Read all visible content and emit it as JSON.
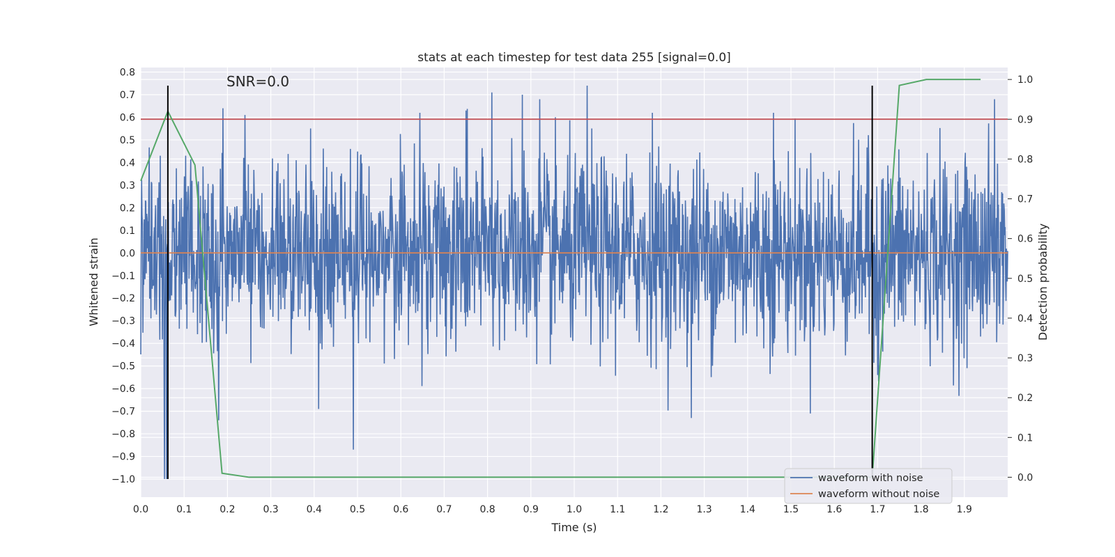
{
  "chart_data": {
    "type": "line",
    "title": "stats at each timestep for test data 255 [signal=0.0]",
    "xlabel": "Time (s)",
    "ylabel": "Whitened strain",
    "y2label": "Detection probability",
    "annotation": "SNR=0.0",
    "xlim": [
      0.0,
      2.0
    ],
    "ylim": [
      -1.08,
      0.82
    ],
    "y2lim": [
      -0.05,
      1.03
    ],
    "x_ticks": [
      "0.0",
      "0.1",
      "0.2",
      "0.3",
      "0.4",
      "0.5",
      "0.6",
      "0.7",
      "0.8",
      "0.9",
      "1.0",
      "1.1",
      "1.2",
      "1.3",
      "1.4",
      "1.5",
      "1.6",
      "1.7",
      "1.8",
      "1.9"
    ],
    "y_ticks": [
      "0.8",
      "0.7",
      "0.6",
      "0.5",
      "0.4",
      "0.3",
      "0.2",
      "0.1",
      "0.0",
      "−0.1",
      "−0.2",
      "−0.3",
      "−0.4",
      "−0.5",
      "−0.6",
      "−0.7",
      "−0.8",
      "−0.9",
      "−1.0"
    ],
    "y2_ticks": [
      "1.0",
      "0.9",
      "0.8",
      "0.7",
      "0.6",
      "0.5",
      "0.4",
      "0.3",
      "0.2",
      "0.1",
      "0.0"
    ],
    "grid": true,
    "legend_position": "lower-right",
    "series": [
      {
        "name": "waveform with noise",
        "color": "#4c72b0",
        "axis": "left",
        "generated": true,
        "n_points": 2048,
        "std": 0.21,
        "peaks": [
          [
            0.055,
            -1.0
          ],
          [
            0.06,
            -1.0
          ],
          [
            0.045,
            0.43
          ],
          [
            0.19,
            0.64
          ],
          [
            0.24,
            0.61
          ],
          [
            0.18,
            -0.74
          ],
          [
            0.49,
            -0.87
          ],
          [
            0.81,
            0.71
          ],
          [
            0.88,
            0.7
          ],
          [
            1.03,
            0.74
          ],
          [
            1.27,
            -0.73
          ],
          [
            1.46,
            0.62
          ],
          [
            1.97,
            0.68
          ],
          [
            0.75,
            0.63
          ],
          [
            0.92,
            0.68
          ],
          [
            1.18,
            0.62
          ],
          [
            1.7,
            -0.54
          ],
          [
            0.41,
            -0.69
          ]
        ]
      },
      {
        "name": "waveform without noise",
        "color": "#dd8452",
        "axis": "left",
        "x": [
          0.0,
          2.0
        ],
        "y": [
          0.0,
          0.0
        ]
      },
      {
        "color": "#55a868",
        "axis": "right",
        "x": [
          0.0,
          0.0625,
          0.125,
          0.1875,
          0.25,
          1.6875,
          1.75,
          1.8125,
          1.9375
        ],
        "y": [
          0.745,
          0.92,
          0.785,
          0.01,
          0.0,
          0.0,
          0.985,
          1.0,
          1.0
        ]
      }
    ],
    "threshold": {
      "value": 0.9,
      "axis": "right",
      "color": "#c44e52"
    },
    "markers": {
      "x": [
        0.0625,
        1.6875
      ],
      "y_range": [
        -1.0,
        0.74
      ],
      "color": "#000000"
    }
  }
}
